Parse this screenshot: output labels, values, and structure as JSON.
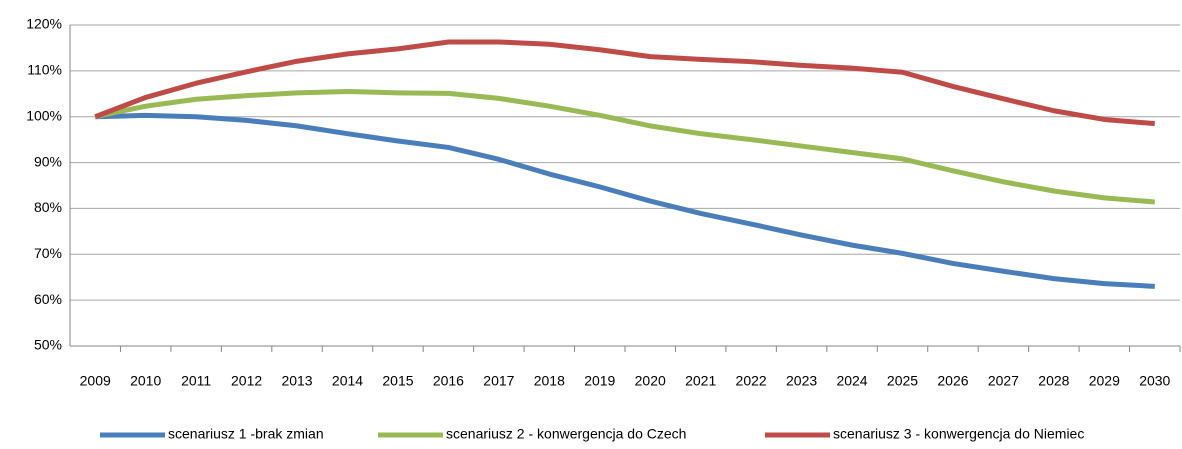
{
  "chart_data": {
    "type": "line",
    "categories": [
      "2009",
      "2010",
      "2011",
      "2012",
      "2013",
      "2014",
      "2015",
      "2016",
      "2017",
      "2018",
      "2019",
      "2020",
      "2021",
      "2022",
      "2023",
      "2024",
      "2025",
      "2026",
      "2027",
      "2028",
      "2029",
      "2030"
    ],
    "series": [
      {
        "name": "scenariusz 1 -brak zmian",
        "color": "#4a7ebb",
        "values": [
          100,
          100.3,
          100,
          99.2,
          98,
          96.3,
          94.7,
          93.3,
          90.7,
          87.5,
          84.7,
          81.6,
          78.9,
          76.6,
          74.2,
          72,
          70.2,
          68,
          66.3,
          64.7,
          63.6,
          63
        ]
      },
      {
        "name": "scenariusz 2 - konwergencja do Czech",
        "color": "#98b954",
        "values": [
          100,
          102.3,
          103.8,
          104.6,
          105.2,
          105.5,
          105.2,
          105.1,
          104,
          102.3,
          100.3,
          98,
          96.3,
          95,
          93.6,
          92.2,
          90.8,
          88.2,
          85.8,
          83.8,
          82.3,
          81.4
        ]
      },
      {
        "name": "scenariusz 3 - konwergencja do Niemiec",
        "color": "#be4b48",
        "values": [
          100,
          104.2,
          107.3,
          109.8,
          112.1,
          113.7,
          114.8,
          116.3,
          116.3,
          115.8,
          114.6,
          113.1,
          112.5,
          112,
          111.2,
          110.6,
          109.7,
          106.6,
          103.9,
          101.3,
          99.4,
          98.5
        ]
      }
    ],
    "ylim": [
      50,
      120
    ],
    "yticks": [
      {
        "value": 50,
        "label": "50%"
      },
      {
        "value": 60,
        "label": "60%"
      },
      {
        "value": 70,
        "label": "70%"
      },
      {
        "value": 80,
        "label": "80%"
      },
      {
        "value": 90,
        "label": "90%"
      },
      {
        "value": 100,
        "label": "100%"
      },
      {
        "value": 110,
        "label": "110%"
      },
      {
        "value": 120,
        "label": "120%"
      }
    ],
    "grid": true,
    "legend": "bottom"
  }
}
